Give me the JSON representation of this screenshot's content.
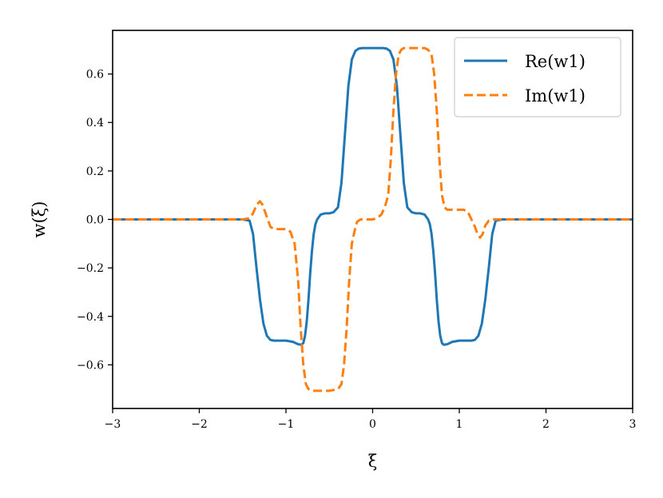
{
  "chart_data": {
    "type": "line",
    "title": "",
    "xlabel": "ξ",
    "ylabel": "w(ξ)",
    "xlim": [
      -3,
      3
    ],
    "ylim": [
      -0.78,
      0.78
    ],
    "xticks": [
      -3,
      -2,
      -1,
      0,
      1,
      2,
      3
    ],
    "xtick_labels": [
      "−3",
      "−2",
      "−1",
      "0",
      "1",
      "2",
      "3"
    ],
    "yticks": [
      -0.6,
      -0.4,
      -0.2,
      0.0,
      0.2,
      0.4,
      0.6
    ],
    "ytick_labels": [
      "−0.6",
      "−0.4",
      "−0.2",
      "0.0",
      "0.2",
      "0.4",
      "0.6"
    ],
    "grid": false,
    "legend_position": "top-right",
    "series": [
      {
        "name": "Re(w1)",
        "color": "#1f77b4",
        "style": "solid",
        "x": [
          -3.0,
          -1.5,
          -1.42,
          -1.38,
          -1.34,
          -1.3,
          -1.26,
          -1.22,
          -1.18,
          -1.14,
          -1.1,
          -1.0,
          -0.92,
          -0.86,
          -0.82,
          -0.8,
          -0.78,
          -0.76,
          -0.74,
          -0.72,
          -0.7,
          -0.68,
          -0.66,
          -0.64,
          -0.6,
          -0.55,
          -0.5,
          -0.45,
          -0.4,
          -0.36,
          -0.32,
          -0.28,
          -0.24,
          -0.2,
          -0.16,
          -0.12,
          -0.08,
          -0.04,
          0.0,
          0.04,
          0.08,
          0.12,
          0.16,
          0.2,
          0.24,
          0.28,
          0.32,
          0.36,
          0.4,
          0.45,
          0.5,
          0.55,
          0.6,
          0.64,
          0.66,
          0.68,
          0.7,
          0.72,
          0.74,
          0.76,
          0.78,
          0.8,
          0.82,
          0.86,
          0.92,
          1.0,
          1.1,
          1.14,
          1.18,
          1.22,
          1.26,
          1.3,
          1.34,
          1.38,
          1.42,
          1.5,
          3.0
        ],
        "y": [
          0.0,
          0.0,
          -0.005,
          -0.06,
          -0.2,
          -0.33,
          -0.43,
          -0.48,
          -0.497,
          -0.5,
          -0.5,
          -0.5,
          -0.505,
          -0.515,
          -0.517,
          -0.51,
          -0.48,
          -0.42,
          -0.33,
          -0.22,
          -0.13,
          -0.06,
          -0.02,
          0.0,
          0.02,
          0.025,
          0.025,
          0.03,
          0.05,
          0.15,
          0.35,
          0.55,
          0.66,
          0.695,
          0.705,
          0.707,
          0.707,
          0.707,
          0.707,
          0.707,
          0.707,
          0.707,
          0.705,
          0.695,
          0.66,
          0.55,
          0.35,
          0.15,
          0.05,
          0.03,
          0.025,
          0.025,
          0.02,
          0.0,
          -0.02,
          -0.06,
          -0.13,
          -0.22,
          -0.33,
          -0.42,
          -0.48,
          -0.51,
          -0.517,
          -0.515,
          -0.505,
          -0.5,
          -0.5,
          -0.5,
          -0.497,
          -0.48,
          -0.43,
          -0.33,
          -0.2,
          -0.06,
          -0.005,
          0.0,
          0.0
        ]
      },
      {
        "name": "Im(w1)",
        "color": "#ff7f0e",
        "style": "dashed",
        "x": [
          -3.0,
          -1.5,
          -1.42,
          -1.38,
          -1.34,
          -1.3,
          -1.27,
          -1.24,
          -1.21,
          -1.18,
          -1.14,
          -1.1,
          -1.05,
          -1.0,
          -0.95,
          -0.9,
          -0.86,
          -0.83,
          -0.8,
          -0.77,
          -0.74,
          -0.71,
          -0.68,
          -0.64,
          -0.6,
          -0.5,
          -0.4,
          -0.36,
          -0.33,
          -0.3,
          -0.27,
          -0.24,
          -0.21,
          -0.18,
          -0.14,
          -0.1,
          -0.05,
          0.0,
          0.05,
          0.1,
          0.14,
          0.18,
          0.21,
          0.24,
          0.27,
          0.3,
          0.33,
          0.36,
          0.4,
          0.5,
          0.6,
          0.64,
          0.68,
          0.71,
          0.74,
          0.77,
          0.8,
          0.83,
          0.86,
          0.9,
          0.95,
          1.0,
          1.05,
          1.1,
          1.14,
          1.18,
          1.21,
          1.24,
          1.27,
          1.3,
          1.34,
          1.38,
          1.42,
          1.5,
          3.0
        ],
        "y": [
          0.0,
          0.0,
          0.005,
          0.025,
          0.06,
          0.075,
          0.06,
          0.03,
          0.0,
          -0.03,
          -0.04,
          -0.04,
          -0.04,
          -0.04,
          -0.05,
          -0.1,
          -0.25,
          -0.45,
          -0.6,
          -0.68,
          -0.7,
          -0.707,
          -0.707,
          -0.707,
          -0.707,
          -0.707,
          -0.7,
          -0.68,
          -0.6,
          -0.45,
          -0.25,
          -0.1,
          -0.05,
          -0.01,
          0.0,
          0.0,
          0.0,
          0.0,
          0.005,
          0.02,
          0.05,
          0.1,
          0.25,
          0.45,
          0.6,
          0.68,
          0.7,
          0.707,
          0.707,
          0.707,
          0.707,
          0.7,
          0.68,
          0.6,
          0.45,
          0.25,
          0.1,
          0.05,
          0.04,
          0.04,
          0.04,
          0.04,
          0.04,
          0.03,
          0.0,
          -0.03,
          -0.06,
          -0.075,
          -0.06,
          -0.025,
          -0.005,
          0.0,
          0.0,
          0.0,
          0.0
        ]
      }
    ]
  }
}
